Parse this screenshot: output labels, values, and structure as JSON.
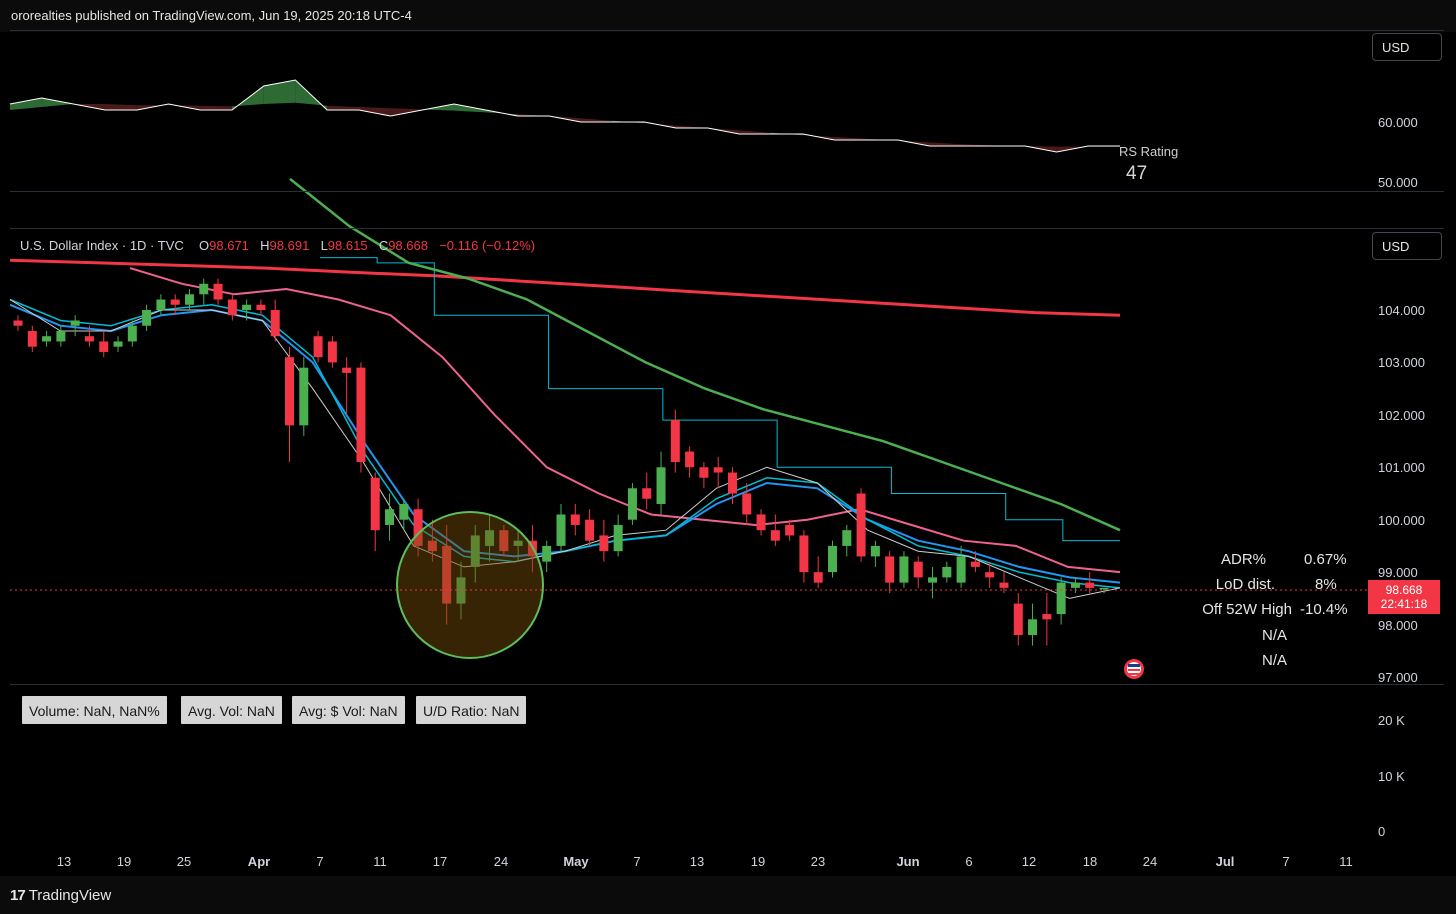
{
  "header": {
    "published_text": "ororealties published on TradingView.com, Jun 19, 2025 20:18 UTC-4"
  },
  "rs_pane": {
    "currency": "USD",
    "rs_label": "RS Rating",
    "rs_value": "47",
    "y_ticks": [
      "60.000",
      "50.000"
    ]
  },
  "main_pane": {
    "currency": "USD",
    "legend": {
      "symbol": "U.S. Dollar Index · 1D · TVC",
      "open_label": "O",
      "open": "98.671",
      "high_label": "H",
      "high": "98.691",
      "low_label": "L",
      "low": "98.615",
      "close_label": "C",
      "close": "98.668",
      "change": "−0.116 (−0.12%)"
    },
    "y_ticks": [
      "104.000",
      "103.000",
      "102.000",
      "101.000",
      "100.000",
      "99.000",
      "98.000",
      "97.000"
    ],
    "last_price": "98.668",
    "countdown": "22:41:18",
    "stats": [
      {
        "label": "ADR%",
        "value": "0.67%"
      },
      {
        "label": "LoD dist.",
        "value": "8%"
      },
      {
        "label": "Off 52W High",
        "value": "-10.4%"
      },
      {
        "label": "",
        "value": "N/A"
      },
      {
        "label": "",
        "value": "N/A"
      }
    ]
  },
  "volume_pane": {
    "boxes": [
      "Volume: NaN, NaN%",
      "Avg. Vol: NaN",
      "Avg: $ Vol: NaN",
      "U/D Ratio: NaN"
    ],
    "y_ticks": [
      "20 K",
      "10 K",
      "0"
    ]
  },
  "x_axis": {
    "ticks": [
      {
        "label": "13",
        "bold": false
      },
      {
        "label": "19",
        "bold": false
      },
      {
        "label": "25",
        "bold": false
      },
      {
        "label": "Apr",
        "bold": true
      },
      {
        "label": "7",
        "bold": false
      },
      {
        "label": "11",
        "bold": false
      },
      {
        "label": "17",
        "bold": false
      },
      {
        "label": "24",
        "bold": false
      },
      {
        "label": "May",
        "bold": true
      },
      {
        "label": "7",
        "bold": false
      },
      {
        "label": "13",
        "bold": false
      },
      {
        "label": "19",
        "bold": false
      },
      {
        "label": "23",
        "bold": false
      },
      {
        "label": "Jun",
        "bold": true
      },
      {
        "label": "6",
        "bold": false
      },
      {
        "label": "12",
        "bold": false
      },
      {
        "label": "18",
        "bold": false
      },
      {
        "label": "24",
        "bold": false
      },
      {
        "label": "Jul",
        "bold": true
      },
      {
        "label": "7",
        "bold": false
      },
      {
        "label": "11",
        "bold": false
      }
    ]
  },
  "footer": {
    "brand": "TradingView"
  },
  "colors": {
    "up": "#4caf50",
    "down": "#f23645",
    "ma_red": "#f23645",
    "ma_green": "#4caf50",
    "ma_pink": "#f06292",
    "ma_blue": "#2196f3",
    "ma_cyan": "#00bcd4",
    "ma_white": "#cfcfcf",
    "rs_line": "#ffffff"
  },
  "chart_data": {
    "type": "candlestick",
    "title": "U.S. Dollar Index · 1D · TVC",
    "ylim": [
      97.0,
      104.5
    ],
    "candles": [
      [
        103.8,
        103.9,
        103.6,
        103.7
      ],
      [
        103.6,
        103.7,
        103.2,
        103.3
      ],
      [
        103.4,
        103.6,
        103.3,
        103.5
      ],
      [
        103.4,
        103.7,
        103.3,
        103.6
      ],
      [
        103.7,
        103.9,
        103.5,
        103.8
      ],
      [
        103.5,
        103.7,
        103.3,
        103.4
      ],
      [
        103.4,
        103.6,
        103.1,
        103.2
      ],
      [
        103.3,
        103.5,
        103.2,
        103.4
      ],
      [
        103.4,
        103.8,
        103.3,
        103.7
      ],
      [
        103.7,
        104.1,
        103.6,
        104.0
      ],
      [
        104.0,
        104.3,
        103.9,
        104.2
      ],
      [
        104.2,
        104.3,
        103.9,
        104.1
      ],
      [
        104.1,
        104.4,
        104.0,
        104.3
      ],
      [
        104.3,
        104.6,
        104.1,
        104.5
      ],
      [
        104.5,
        104.6,
        104.1,
        104.2
      ],
      [
        104.2,
        104.3,
        103.8,
        103.9
      ],
      [
        104.0,
        104.2,
        103.8,
        104.1
      ],
      [
        104.1,
        104.2,
        103.9,
        104.0
      ],
      [
        104.0,
        104.2,
        103.4,
        103.5
      ],
      [
        103.1,
        103.3,
        101.1,
        101.8
      ],
      [
        101.8,
        103.1,
        101.6,
        102.9
      ],
      [
        103.5,
        103.6,
        103.0,
        103.1
      ],
      [
        103.4,
        103.5,
        102.9,
        103.0
      ],
      [
        102.9,
        103.1,
        102.0,
        102.8
      ],
      [
        102.9,
        103.0,
        100.9,
        101.1
      ],
      [
        100.8,
        100.9,
        99.4,
        99.8
      ],
      [
        99.9,
        100.5,
        99.6,
        100.2
      ],
      [
        100.0,
        100.4,
        99.8,
        100.3
      ],
      [
        100.2,
        100.4,
        99.3,
        99.5
      ],
      [
        99.6,
        100.0,
        99.2,
        99.4
      ],
      [
        99.5,
        99.9,
        98.0,
        98.4
      ],
      [
        98.4,
        99.2,
        98.1,
        98.9
      ],
      [
        99.1,
        99.9,
        98.8,
        99.7
      ],
      [
        99.5,
        100.1,
        99.2,
        99.8
      ],
      [
        99.8,
        99.9,
        99.3,
        99.4
      ],
      [
        99.5,
        99.8,
        99.2,
        99.6
      ],
      [
        99.6,
        99.9,
        99.0,
        99.3
      ],
      [
        99.2,
        99.6,
        99.0,
        99.5
      ],
      [
        99.5,
        100.3,
        99.4,
        100.1
      ],
      [
        100.1,
        100.3,
        99.7,
        99.9
      ],
      [
        100.0,
        100.2,
        99.5,
        99.6
      ],
      [
        99.7,
        100.0,
        99.2,
        99.4
      ],
      [
        99.4,
        100.1,
        99.3,
        99.9
      ],
      [
        100.0,
        100.7,
        99.9,
        100.6
      ],
      [
        100.6,
        100.9,
        100.2,
        100.4
      ],
      [
        100.3,
        101.3,
        100.1,
        101.0
      ],
      [
        101.9,
        102.1,
        100.9,
        101.1
      ],
      [
        101.3,
        101.4,
        100.8,
        101.0
      ],
      [
        101.0,
        101.1,
        100.6,
        100.8
      ],
      [
        101.0,
        101.2,
        100.6,
        100.9
      ],
      [
        100.9,
        101.0,
        100.3,
        100.5
      ],
      [
        100.5,
        100.7,
        99.9,
        100.1
      ],
      [
        100.1,
        100.2,
        99.7,
        99.8
      ],
      [
        99.8,
        100.1,
        99.5,
        99.6
      ],
      [
        99.9,
        100.0,
        99.6,
        99.7
      ],
      [
        99.7,
        99.8,
        98.8,
        99.0
      ],
      [
        99.0,
        99.3,
        98.7,
        98.8
      ],
      [
        99.0,
        99.6,
        98.9,
        99.5
      ],
      [
        99.5,
        99.9,
        99.3,
        99.8
      ],
      [
        100.5,
        100.6,
        99.2,
        99.3
      ],
      [
        99.3,
        99.6,
        99.1,
        99.5
      ],
      [
        99.3,
        99.4,
        98.6,
        98.8
      ],
      [
        98.8,
        99.4,
        98.7,
        99.3
      ],
      [
        99.2,
        99.3,
        98.7,
        98.9
      ],
      [
        98.8,
        99.1,
        98.5,
        98.9
      ],
      [
        98.9,
        99.2,
        98.8,
        99.1
      ],
      [
        98.8,
        99.5,
        98.7,
        99.3
      ],
      [
        99.2,
        99.4,
        99.0,
        99.1
      ],
      [
        99.0,
        99.2,
        98.7,
        98.9
      ],
      [
        98.8,
        99.0,
        98.6,
        98.7
      ],
      [
        98.4,
        98.6,
        97.6,
        97.8
      ],
      [
        97.8,
        98.4,
        97.6,
        98.1
      ],
      [
        98.2,
        98.6,
        97.6,
        98.1
      ],
      [
        98.2,
        98.9,
        98.0,
        98.8
      ],
      [
        98.7,
        98.9,
        98.6,
        98.8
      ],
      [
        98.8,
        99.0,
        98.6,
        98.7
      ],
      [
        98.7,
        98.7,
        98.6,
        98.7
      ]
    ],
    "ma_200": [
      104.95,
      104.9,
      104.85,
      104.8,
      104.72,
      104.65,
      104.55,
      104.45,
      104.35,
      104.25,
      104.15,
      104.05,
      103.95,
      103.9
    ],
    "ma_50": [
      106.5,
      105.6,
      104.9,
      104.6,
      104.2,
      103.6,
      103.0,
      102.5,
      102.1,
      101.8,
      101.5,
      101.1,
      100.7,
      100.3,
      99.8
    ],
    "ma_21": [
      104.8,
      104.5,
      104.3,
      104.4,
      104.2,
      103.9,
      103.1,
      102.0,
      101.0,
      100.5,
      100.1,
      100.0,
      99.9,
      100.0,
      100.2,
      99.9,
      99.6,
      99.5,
      99.1,
      99.0
    ],
    "ma_10": [
      104.1,
      103.7,
      103.6,
      103.9,
      104.0,
      103.8,
      103.0,
      101.5,
      100.1,
      99.4,
      99.3,
      99.4,
      99.6,
      99.7,
      100.3,
      100.7,
      100.6,
      100.0,
      99.6,
      99.4,
      99.1,
      98.9,
      98.8
    ],
    "ma_8": [
      104.2,
      103.8,
      103.7,
      104.0,
      104.1,
      103.9,
      103.1,
      101.3,
      99.9,
      99.3,
      99.2,
      99.4,
      99.6,
      99.7,
      100.4,
      100.8,
      100.7,
      100.0,
      99.5,
      99.3,
      99.0,
      98.8,
      98.7
    ],
    "ma_5": [
      104.2,
      103.6,
      103.6,
      104.0,
      104.0,
      103.8,
      102.5,
      101.1,
      99.5,
      99.1,
      99.2,
      99.4,
      99.7,
      99.8,
      100.6,
      101.0,
      100.7,
      99.8,
      99.4,
      99.3,
      98.9,
      98.5,
      98.7
    ],
    "weekly_step": [
      105.0,
      104.9,
      103.9,
      103.9,
      102.5,
      102.5,
      101.9,
      101.9,
      101.0,
      101.0,
      100.5,
      100.5,
      100.0,
      99.6,
      99.6
    ],
    "rs_series": [
      63,
      64,
      63,
      62,
      62,
      63,
      62,
      62,
      66,
      67,
      62,
      62,
      61,
      62,
      63,
      62,
      61,
      61,
      60,
      60,
      60,
      59,
      59,
      58,
      58,
      58,
      57,
      57,
      57,
      56,
      56,
      56,
      56,
      55,
      56,
      56
    ],
    "rs_ma": [
      62,
      62.5,
      63,
      63,
      62.8,
      62.8,
      62.7,
      62.6,
      63,
      63.2,
      62.7,
      62.5,
      62.3,
      62.1,
      61.9,
      61.6,
      61.3,
      61.0,
      60.6,
      60.2,
      59.8,
      59.4,
      59.0,
      58.6,
      58.2,
      57.8,
      57.5,
      57.2,
      56.9,
      56.6,
      56.3,
      56.1,
      56,
      55.9,
      55.9,
      55.9
    ],
    "rs_ylim": [
      48,
      70
    ]
  }
}
